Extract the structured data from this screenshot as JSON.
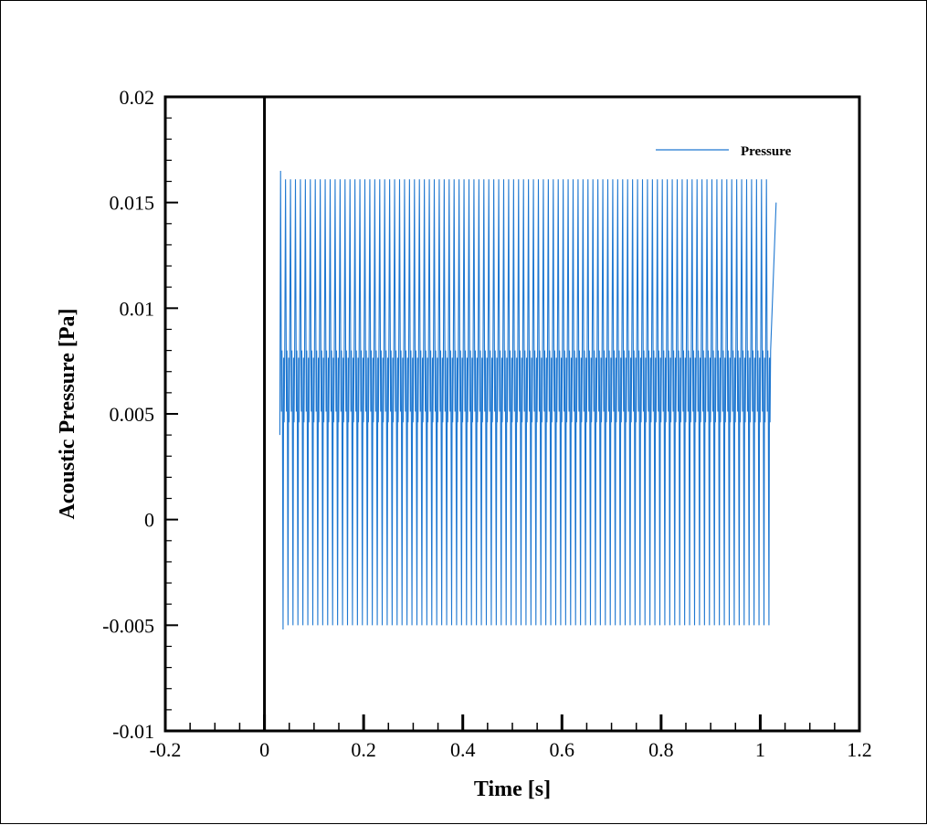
{
  "chart_data": {
    "type": "line",
    "title": "",
    "xlabel": "Time [s]",
    "ylabel": "Acoustic Pressure [Pa]",
    "xlim": [
      -0.2,
      1.2
    ],
    "ylim": [
      -0.01,
      0.02
    ],
    "x_ticks": [
      "-0.2",
      "0",
      "0.2",
      "0.4",
      "0.6",
      "0.8",
      "1",
      "1.2"
    ],
    "x_tick_values": [
      -0.2,
      0,
      0.2,
      0.4,
      0.6,
      0.8,
      1.0,
      1.2
    ],
    "y_ticks": [
      "0.02",
      "0.015",
      "0.01",
      "0.005",
      "0",
      "-0.005",
      "-0.01"
    ],
    "y_tick_values": [
      0.02,
      0.015,
      0.01,
      0.005,
      0,
      -0.005,
      -0.01
    ],
    "grid": false,
    "legend_position": "top-right",
    "series": [
      {
        "name": "Pressure",
        "color": "#1f78d1",
        "x_start": 0.031,
        "x_end": 1.032,
        "frequency_hz": 100,
        "upper_envelope": 0.0161,
        "lower_envelope": -0.005,
        "dense_band": [
          0.0046,
          0.008
        ],
        "initial_peak": 0.0165,
        "initial_trough": -0.0052,
        "start_value": 0.004,
        "end_value": 0.015
      }
    ]
  }
}
